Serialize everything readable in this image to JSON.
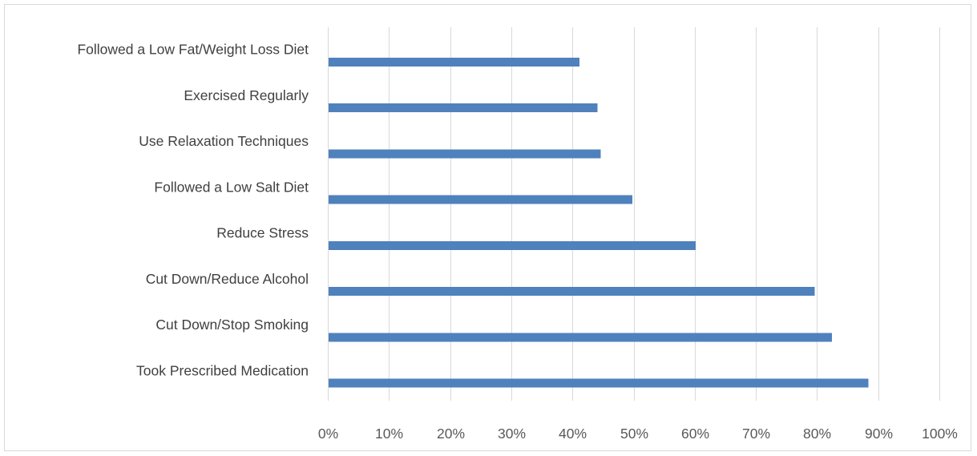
{
  "chart_data": {
    "type": "bar",
    "orientation": "horizontal",
    "categories": [
      "Followed a Low Fat/Weight Loss Diet",
      "Exercised Regularly",
      "Use Relaxation Techniques",
      "Followed a Low Salt Diet",
      "Reduce Stress",
      "Cut Down/Reduce Alcohol",
      "Cut Down/Stop Smoking",
      "Took Prescribed Medication"
    ],
    "values": [
      41,
      44,
      44.5,
      49.7,
      60,
      79.5,
      82.3,
      88.3
    ],
    "x_ticks": [
      "0%",
      "10%",
      "20%",
      "30%",
      "40%",
      "50%",
      "60%",
      "70%",
      "80%",
      "90%",
      "100%"
    ],
    "xlim": [
      0,
      100
    ],
    "grid": true,
    "bar_color": "#4f81bd",
    "grid_color": "#d9d9d9",
    "title": "",
    "xlabel": "",
    "ylabel": ""
  }
}
